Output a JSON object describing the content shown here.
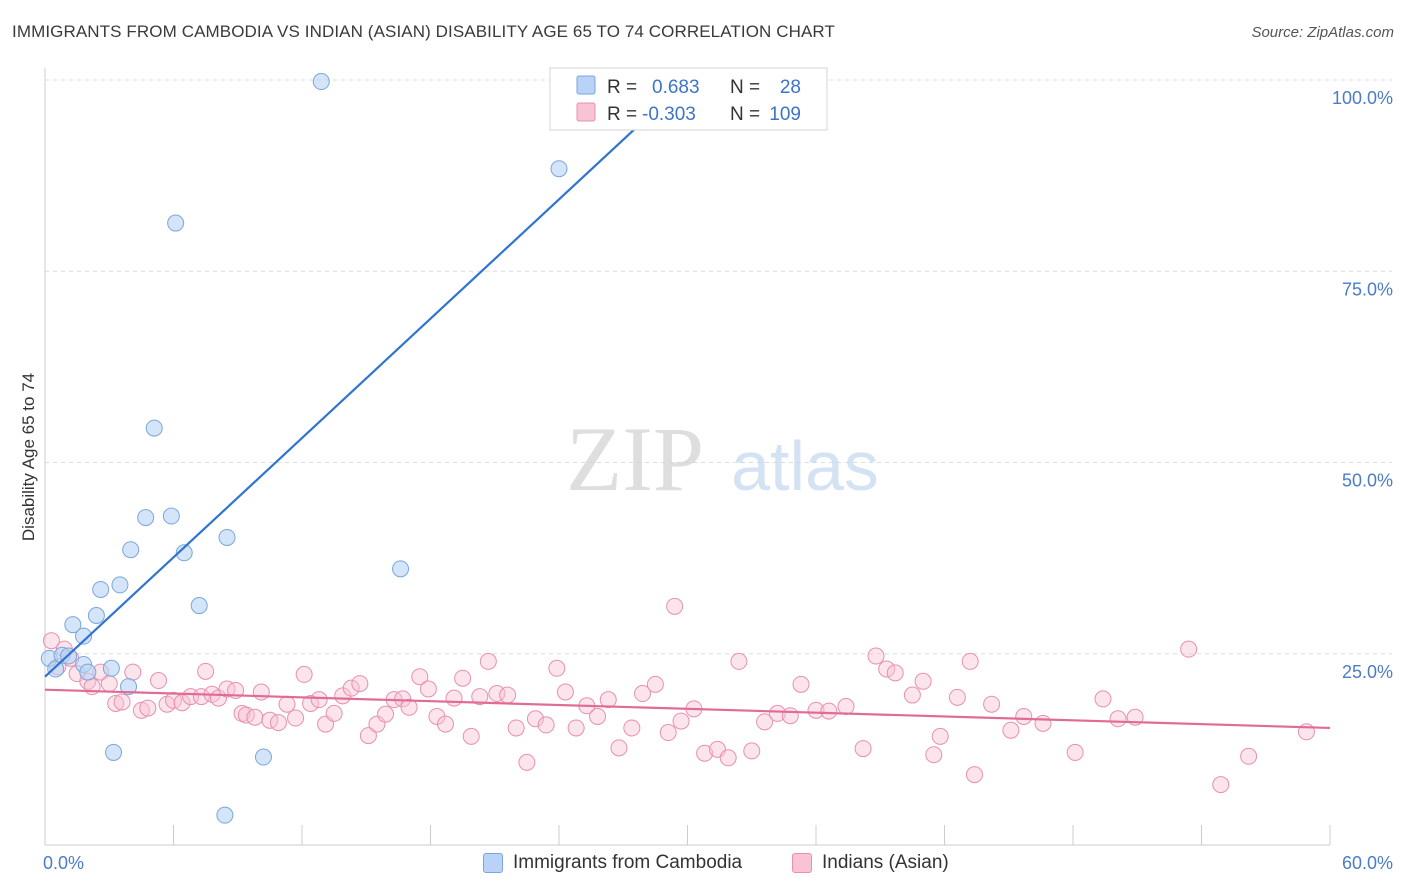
{
  "title": "IMMIGRANTS FROM CAMBODIA VS INDIAN (ASIAN) DISABILITY AGE 65 TO 74 CORRELATION CHART",
  "source": "Source: ZipAtlas.com",
  "watermark": {
    "zip": "ZIP",
    "atlas": "atlas"
  },
  "colors": {
    "blue_fill": "#b8d3f5",
    "blue_stroke": "#7aa6dc",
    "blue_line": "#2f74d0",
    "pink_fill": "#f8c3d4",
    "pink_stroke": "#e890ad",
    "pink_line": "#e06b96",
    "tick_text": "#4a7cc7",
    "grid": "#dddddd"
  },
  "legend": {
    "r_label": "R =",
    "n_label": "N =",
    "rows": [
      {
        "r": "0.683",
        "n": "28"
      },
      {
        "r": "-0.303",
        "n": "109"
      }
    ]
  },
  "bottom_legend": [
    "Immigrants from Cambodia",
    "Indians (Asian)"
  ],
  "chart_data": {
    "type": "scatter",
    "title": "IMMIGRANTS FROM CAMBODIA VS INDIAN (ASIAN) DISABILITY AGE 65 TO 74 CORRELATION CHART",
    "xlabel": "",
    "ylabel": "Disability Age 65 to 74",
    "xlim": [
      0,
      60
    ],
    "ylim": [
      0,
      100
    ],
    "x_tick_labels": [
      "0.0%",
      "60.0%"
    ],
    "y_tick_labels": [
      "25.0%",
      "50.0%",
      "75.0%",
      "100.0%"
    ],
    "y_ticks": [
      25,
      50,
      75,
      100
    ],
    "grid": true,
    "legend_position": "top-center",
    "series": [
      {
        "name": "Immigrants from Cambodia",
        "trend": {
          "x0": 0,
          "y0": 22.0,
          "x1": 30,
          "y1": 100
        },
        "points": [
          [
            0.2,
            24.4
          ],
          [
            0.5,
            23.0
          ],
          [
            0.8,
            24.8
          ],
          [
            1.1,
            24.7
          ],
          [
            1.3,
            28.8
          ],
          [
            1.8,
            27.3
          ],
          [
            1.8,
            23.6
          ],
          [
            2.0,
            22.6
          ],
          [
            2.4,
            30.0
          ],
          [
            2.6,
            33.4
          ],
          [
            3.1,
            23.1
          ],
          [
            3.2,
            12.1
          ],
          [
            3.5,
            34.0
          ],
          [
            3.9,
            20.7
          ],
          [
            4.0,
            38.6
          ],
          [
            4.7,
            42.8
          ],
          [
            5.1,
            54.5
          ],
          [
            5.9,
            43.0
          ],
          [
            6.1,
            81.3
          ],
          [
            6.5,
            38.2
          ],
          [
            7.2,
            31.3
          ],
          [
            8.4,
            3.9
          ],
          [
            8.5,
            40.2
          ],
          [
            10.2,
            11.5
          ],
          [
            12.9,
            99.8
          ],
          [
            16.6,
            36.1
          ],
          [
            24.0,
            88.4
          ],
          [
            26.4,
            99.6
          ]
        ]
      },
      {
        "name": "Indians (Asian)",
        "trend": {
          "x0": 0,
          "y0": 20.3,
          "x1": 60,
          "y1": 15.3
        },
        "points": [
          [
            0.3,
            26.7
          ],
          [
            0.6,
            23.3
          ],
          [
            0.9,
            25.6
          ],
          [
            1.2,
            24.4
          ],
          [
            1.5,
            22.4
          ],
          [
            2.0,
            21.4
          ],
          [
            2.2,
            20.7
          ],
          [
            2.6,
            22.6
          ],
          [
            3.0,
            21.1
          ],
          [
            3.3,
            18.5
          ],
          [
            3.6,
            18.7
          ],
          [
            4.1,
            22.6
          ],
          [
            4.5,
            17.6
          ],
          [
            4.8,
            17.9
          ],
          [
            5.3,
            21.5
          ],
          [
            5.7,
            18.4
          ],
          [
            6.0,
            18.9
          ],
          [
            6.4,
            18.6
          ],
          [
            6.8,
            19.4
          ],
          [
            7.3,
            19.4
          ],
          [
            7.5,
            22.7
          ],
          [
            7.8,
            19.7
          ],
          [
            8.1,
            19.2
          ],
          [
            8.5,
            20.4
          ],
          [
            8.9,
            20.2
          ],
          [
            9.2,
            17.2
          ],
          [
            9.4,
            17.0
          ],
          [
            9.8,
            16.7
          ],
          [
            10.1,
            20.0
          ],
          [
            10.5,
            16.3
          ],
          [
            10.9,
            16.0
          ],
          [
            11.3,
            18.4
          ],
          [
            11.7,
            16.6
          ],
          [
            12.1,
            22.3
          ],
          [
            12.4,
            18.5
          ],
          [
            12.8,
            19.0
          ],
          [
            13.1,
            15.8
          ],
          [
            13.5,
            17.2
          ],
          [
            13.9,
            19.5
          ],
          [
            14.3,
            20.5
          ],
          [
            14.7,
            21.1
          ],
          [
            15.1,
            14.3
          ],
          [
            15.5,
            15.8
          ],
          [
            15.9,
            17.1
          ],
          [
            16.3,
            19.0
          ],
          [
            16.7,
            19.1
          ],
          [
            17.0,
            18.0
          ],
          [
            17.5,
            22.0
          ],
          [
            17.9,
            20.4
          ],
          [
            18.3,
            16.8
          ],
          [
            18.7,
            15.8
          ],
          [
            19.1,
            19.2
          ],
          [
            19.5,
            21.8
          ],
          [
            19.9,
            14.2
          ],
          [
            20.3,
            19.4
          ],
          [
            20.7,
            24.0
          ],
          [
            21.1,
            19.8
          ],
          [
            21.6,
            19.6
          ],
          [
            22.0,
            15.3
          ],
          [
            22.5,
            10.8
          ],
          [
            22.9,
            16.5
          ],
          [
            23.4,
            15.7
          ],
          [
            23.9,
            23.1
          ],
          [
            24.3,
            20.0
          ],
          [
            24.8,
            15.3
          ],
          [
            25.3,
            18.2
          ],
          [
            25.8,
            16.8
          ],
          [
            26.3,
            19.0
          ],
          [
            26.8,
            12.7
          ],
          [
            27.4,
            15.3
          ],
          [
            27.9,
            19.8
          ],
          [
            28.5,
            21.0
          ],
          [
            29.1,
            14.7
          ],
          [
            29.4,
            31.2
          ],
          [
            29.7,
            16.2
          ],
          [
            30.3,
            17.8
          ],
          [
            30.8,
            12.0
          ],
          [
            31.4,
            12.5
          ],
          [
            31.9,
            11.4
          ],
          [
            32.4,
            24.0
          ],
          [
            33.0,
            12.3
          ],
          [
            33.6,
            16.1
          ],
          [
            34.2,
            17.2
          ],
          [
            34.8,
            16.9
          ],
          [
            35.3,
            21.0
          ],
          [
            36.0,
            17.6
          ],
          [
            36.6,
            17.5
          ],
          [
            37.4,
            18.1
          ],
          [
            38.2,
            12.6
          ],
          [
            38.8,
            24.7
          ],
          [
            39.3,
            23.0
          ],
          [
            39.7,
            22.5
          ],
          [
            40.5,
            19.6
          ],
          [
            41.0,
            21.4
          ],
          [
            41.5,
            11.8
          ],
          [
            41.8,
            14.2
          ],
          [
            42.6,
            19.3
          ],
          [
            43.2,
            24.0
          ],
          [
            43.4,
            9.2
          ],
          [
            44.2,
            18.4
          ],
          [
            45.1,
            15.0
          ],
          [
            45.7,
            16.8
          ],
          [
            46.6,
            15.9
          ],
          [
            48.1,
            12.1
          ],
          [
            49.4,
            19.1
          ],
          [
            50.1,
            16.5
          ],
          [
            50.9,
            16.7
          ],
          [
            53.4,
            25.6
          ],
          [
            54.9,
            7.9
          ],
          [
            56.2,
            11.6
          ],
          [
            58.9,
            14.8
          ]
        ]
      }
    ]
  }
}
